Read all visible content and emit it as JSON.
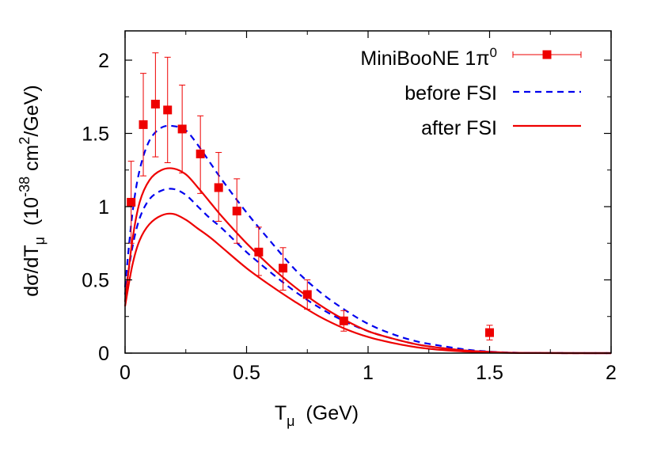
{
  "chart_data": {
    "type": "line",
    "xlim": [
      0,
      2
    ],
    "ylim": [
      0,
      2.2
    ],
    "x_ticks": [
      0,
      0.5,
      1,
      1.5,
      2
    ],
    "y_ticks": [
      0,
      0.5,
      1,
      1.5,
      2
    ],
    "x_tick_labels": [
      "0",
      "0.5",
      "1",
      "1.5",
      "2"
    ],
    "y_tick_labels": [
      "0",
      "0.5",
      "1",
      "1.5",
      "2"
    ],
    "xlabel": {
      "main": "T",
      "sub": "μ",
      "rest": "  (GeV)"
    },
    "ylabel": {
      "p1": "dσ/dT",
      "sub1": "μ",
      "p2": "  (10",
      "sup1": "-38",
      "p3": " cm",
      "sup2": "2",
      "p4": "/GeV)"
    },
    "grid": false,
    "legend_position": "top-right",
    "legend": [
      {
        "label": "MiniBooNE 1π",
        "sup": "0",
        "style": "points-errorbars",
        "color": "#ee0000"
      },
      {
        "label": "before FSI",
        "style": "dashed",
        "color": "#0000ee"
      },
      {
        "label": "after FSI",
        "style": "solid",
        "color": "#ee0000"
      }
    ],
    "data_points": {
      "name": "MiniBooNE 1π0",
      "color": "#ee0000",
      "points": [
        {
          "x": 0.025,
          "y": 1.03,
          "ylo": 0.75,
          "yhi": 1.31
        },
        {
          "x": 0.075,
          "y": 1.56,
          "ylo": 1.21,
          "yhi": 1.91
        },
        {
          "x": 0.125,
          "y": 1.7,
          "ylo": 1.34,
          "yhi": 2.05
        },
        {
          "x": 0.175,
          "y": 1.66,
          "ylo": 1.3,
          "yhi": 2.02
        },
        {
          "x": 0.235,
          "y": 1.53,
          "ylo": 1.23,
          "yhi": 1.83
        },
        {
          "x": 0.31,
          "y": 1.36,
          "ylo": 1.09,
          "yhi": 1.62
        },
        {
          "x": 0.385,
          "y": 1.13,
          "ylo": 0.9,
          "yhi": 1.37
        },
        {
          "x": 0.46,
          "y": 0.97,
          "ylo": 0.75,
          "yhi": 1.19
        },
        {
          "x": 0.55,
          "y": 0.69,
          "ylo": 0.53,
          "yhi": 0.86
        },
        {
          "x": 0.65,
          "y": 0.58,
          "ylo": 0.43,
          "yhi": 0.72
        },
        {
          "x": 0.75,
          "y": 0.4,
          "ylo": 0.3,
          "yhi": 0.5
        },
        {
          "x": 0.9,
          "y": 0.22,
          "ylo": 0.15,
          "yhi": 0.29
        },
        {
          "x": 1.5,
          "y": 0.14,
          "ylo": 0.09,
          "yhi": 0.19
        }
      ]
    },
    "series": [
      {
        "name": "before FSI",
        "style": "dashed",
        "color": "#0000ee",
        "bands": [
          [
            [
              0,
              0.45
            ],
            [
              0.03,
              0.95
            ],
            [
              0.06,
              1.25
            ],
            [
              0.1,
              1.45
            ],
            [
              0.15,
              1.54
            ],
            [
              0.2,
              1.55
            ],
            [
              0.25,
              1.52
            ],
            [
              0.3,
              1.42
            ],
            [
              0.35,
              1.3
            ],
            [
              0.4,
              1.18
            ],
            [
              0.5,
              0.96
            ],
            [
              0.6,
              0.76
            ],
            [
              0.7,
              0.57
            ],
            [
              0.8,
              0.42
            ],
            [
              0.9,
              0.3
            ],
            [
              1.0,
              0.2
            ],
            [
              1.1,
              0.13
            ],
            [
              1.2,
              0.08
            ],
            [
              1.3,
              0.05
            ],
            [
              1.4,
              0.025
            ],
            [
              1.5,
              0.01
            ],
            [
              1.6,
              0.003
            ],
            [
              1.7,
              0.001
            ],
            [
              2.0,
              0
            ]
          ],
          [
            [
              0,
              0.4
            ],
            [
              0.03,
              0.72
            ],
            [
              0.06,
              0.92
            ],
            [
              0.1,
              1.05
            ],
            [
              0.15,
              1.11
            ],
            [
              0.2,
              1.12
            ],
            [
              0.25,
              1.08
            ],
            [
              0.3,
              1.0
            ],
            [
              0.35,
              0.92
            ],
            [
              0.4,
              0.85
            ],
            [
              0.5,
              0.69
            ],
            [
              0.6,
              0.55
            ],
            [
              0.7,
              0.42
            ],
            [
              0.8,
              0.31
            ],
            [
              0.9,
              0.22
            ],
            [
              1.0,
              0.15
            ],
            [
              1.1,
              0.1
            ],
            [
              1.2,
              0.06
            ],
            [
              1.3,
              0.035
            ],
            [
              1.4,
              0.018
            ],
            [
              1.5,
              0.008
            ],
            [
              1.6,
              0.002
            ],
            [
              1.7,
              0.0005
            ],
            [
              2.0,
              0
            ]
          ]
        ]
      },
      {
        "name": "after FSI",
        "style": "solid",
        "color": "#ee0000",
        "bands": [
          [
            [
              0,
              0.35
            ],
            [
              0.03,
              0.77
            ],
            [
              0.06,
              1.03
            ],
            [
              0.1,
              1.18
            ],
            [
              0.15,
              1.25
            ],
            [
              0.2,
              1.26
            ],
            [
              0.25,
              1.22
            ],
            [
              0.3,
              1.13
            ],
            [
              0.35,
              1.03
            ],
            [
              0.4,
              0.93
            ],
            [
              0.5,
              0.75
            ],
            [
              0.6,
              0.59
            ],
            [
              0.7,
              0.45
            ],
            [
              0.8,
              0.33
            ],
            [
              0.9,
              0.23
            ],
            [
              1.0,
              0.15
            ],
            [
              1.1,
              0.1
            ],
            [
              1.2,
              0.06
            ],
            [
              1.3,
              0.035
            ],
            [
              1.4,
              0.018
            ],
            [
              1.5,
              0.008
            ],
            [
              1.6,
              0.002
            ],
            [
              1.7,
              0.0005
            ],
            [
              2.0,
              0
            ]
          ],
          [
            [
              0,
              0.32
            ],
            [
              0.03,
              0.6
            ],
            [
              0.06,
              0.77
            ],
            [
              0.1,
              0.88
            ],
            [
              0.15,
              0.94
            ],
            [
              0.2,
              0.95
            ],
            [
              0.25,
              0.91
            ],
            [
              0.3,
              0.85
            ],
            [
              0.35,
              0.79
            ],
            [
              0.4,
              0.72
            ],
            [
              0.5,
              0.58
            ],
            [
              0.6,
              0.46
            ],
            [
              0.7,
              0.35
            ],
            [
              0.8,
              0.25
            ],
            [
              0.9,
              0.17
            ],
            [
              1.0,
              0.11
            ],
            [
              1.1,
              0.07
            ],
            [
              1.2,
              0.04
            ],
            [
              1.3,
              0.022
            ],
            [
              1.4,
              0.011
            ],
            [
              1.5,
              0.005
            ],
            [
              1.6,
              0.0015
            ],
            [
              1.7,
              0.0004
            ],
            [
              2.0,
              0
            ]
          ]
        ]
      }
    ]
  }
}
